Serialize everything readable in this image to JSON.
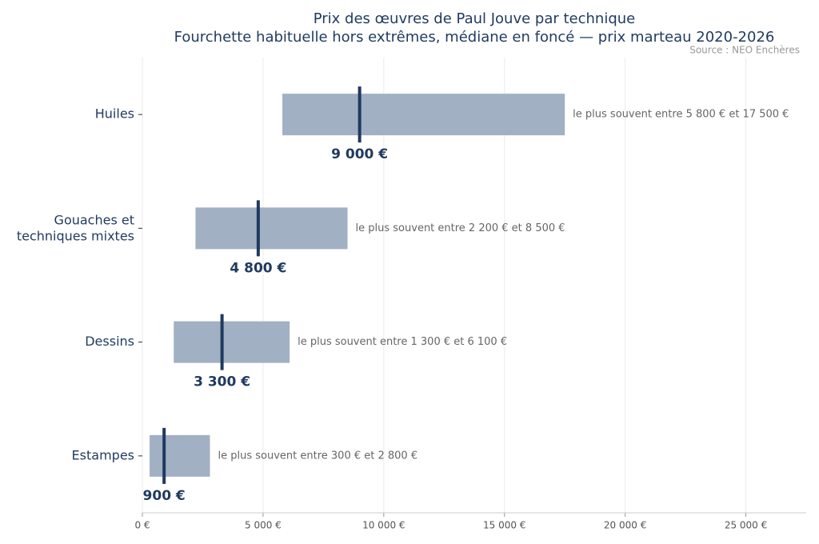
{
  "chart_data": {
    "type": "range",
    "title": "Prix des œuvres de Paul Jouve par technique",
    "subtitle": "Fourchette habituelle hors extrêmes, médiane en foncé — prix marteau 2020-2026",
    "source": "Source : NEO Enchères",
    "categories": [
      "Huiles",
      "Gouaches et\ntechniques mixtes",
      "Dessins",
      "Estampes"
    ],
    "low": [
      5800,
      2200,
      1300,
      300
    ],
    "high": [
      17500,
      8500,
      6100,
      2800
    ],
    "median": [
      9000,
      4800,
      3300,
      900
    ],
    "median_labels": [
      "9 000 €",
      "4 800 €",
      "3 300 €",
      "900 €"
    ],
    "range_labels": [
      "le plus souvent entre 5 800 € et 17 500 €",
      "le plus souvent entre 2 200 € et 8 500 €",
      "le plus souvent entre 1 300 € et 6 100 €",
      "le plus souvent entre 300 € et 2 800 €"
    ],
    "bar_color": "#a2b0c4",
    "median_color": "#1f3a5f",
    "xlim": [
      0,
      27500
    ],
    "xticks": [
      {
        "value": 0,
        "label": "0 €"
      },
      {
        "value": 5000,
        "label": "5 000 €"
      },
      {
        "value": 10000,
        "label": "10 000 €"
      },
      {
        "value": 15000,
        "label": "15 000 €"
      },
      {
        "value": 20000,
        "label": "20 000 €"
      },
      {
        "value": 25000,
        "label": "25 000 €"
      }
    ],
    "grid": true
  }
}
